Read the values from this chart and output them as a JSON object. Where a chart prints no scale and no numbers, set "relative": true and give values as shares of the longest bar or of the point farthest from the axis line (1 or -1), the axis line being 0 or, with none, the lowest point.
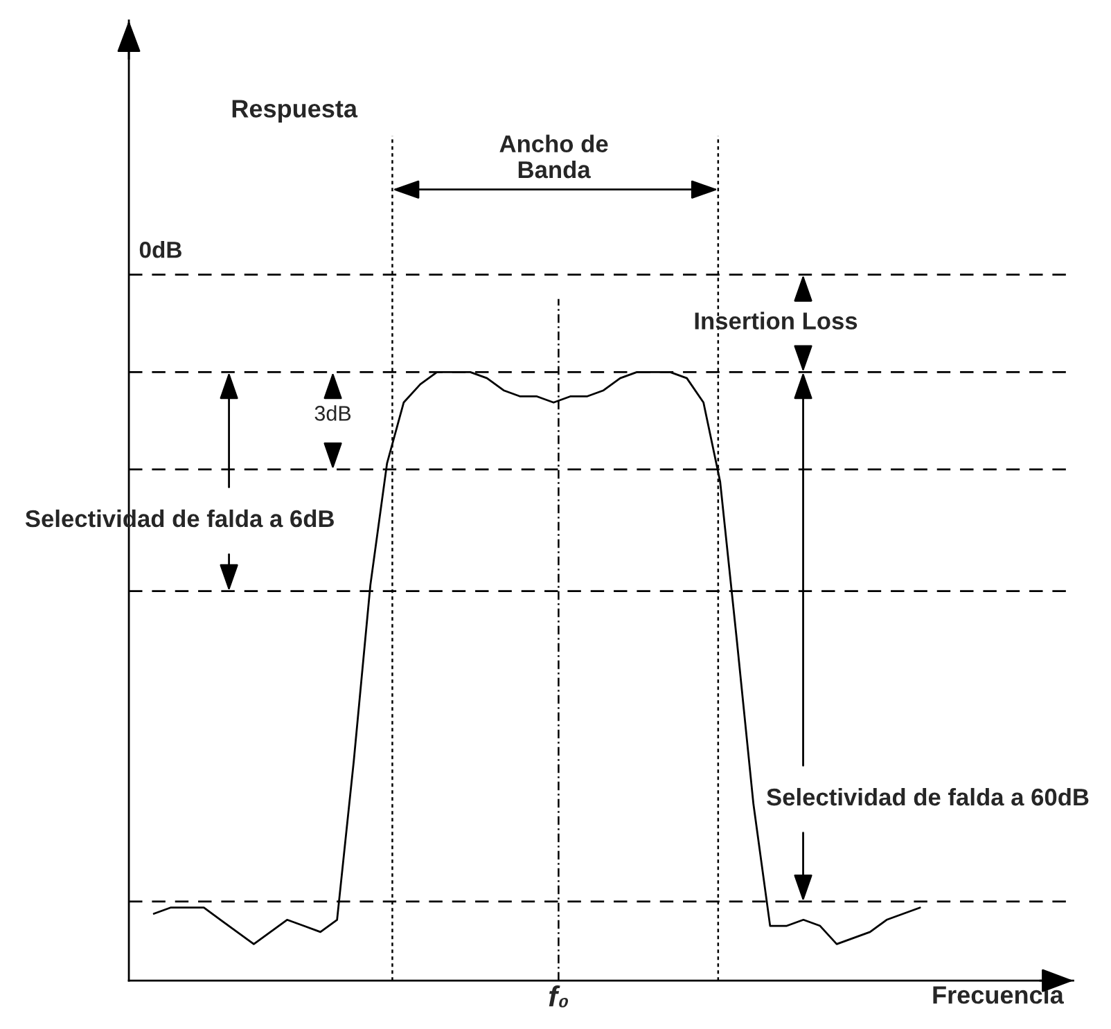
{
  "chart_data": {
    "type": "line",
    "relative": true,
    "xlabel": "Frecuencia",
    "categories": [
      null,
      null,
      null,
      null,
      null,
      null,
      null,
      null,
      null,
      null,
      null,
      null,
      null,
      null,
      null,
      null,
      null,
      null,
      null,
      null,
      null,
      null,
      null,
      null,
      null,
      null,
      null,
      null,
      null,
      null,
      null,
      null,
      null,
      null,
      null,
      null,
      null,
      null,
      null,
      null,
      null,
      null,
      null,
      null,
      null,
      null,
      null
    ],
    "series": [
      {
        "color": "#000000",
        "values": [
          0.11,
          0.12,
          0.12,
          0.12,
          0.1,
          0.08,
          0.06,
          0.08,
          0.1,
          0.09,
          0.08,
          0.1,
          0.36,
          0.65,
          0.85,
          0.95,
          0.98,
          1.0,
          1.0,
          1.0,
          0.99,
          0.97,
          0.96,
          0.96,
          0.95,
          0.96,
          0.96,
          0.97,
          0.99,
          1.0,
          1.0,
          1.0,
          0.99,
          0.95,
          0.82,
          0.56,
          0.29,
          0.09,
          0.09,
          0.1,
          0.09,
          0.06,
          0.07,
          0.08,
          0.1,
          0.11,
          0.12
        ]
      }
    ],
    "ref_lines": [
      {
        "axis": "y",
        "value": 1.16,
        "label": "0dB",
        "color": "#000000",
        "line_style": "dashed"
      },
      {
        "axis": "y",
        "value": 1.0,
        "color": "#000000",
        "line_style": "dashed"
      },
      {
        "axis": "y",
        "value": 0.84,
        "color": "#000000",
        "line_style": "dashed"
      },
      {
        "axis": "y",
        "value": 0.64,
        "color": "#000000",
        "line_style": "dashed"
      },
      {
        "axis": "y",
        "value": 0.13,
        "color": "#000000",
        "line_style": "dashed"
      }
    ],
    "annotations": [
      "Ancho de\nBanda",
      "Insertion Loss",
      "3dB",
      "Selectividad de falda a 6dB",
      "Selectividad de falda a 60dB",
      "Respuesta",
      "f₀"
    ]
  }
}
